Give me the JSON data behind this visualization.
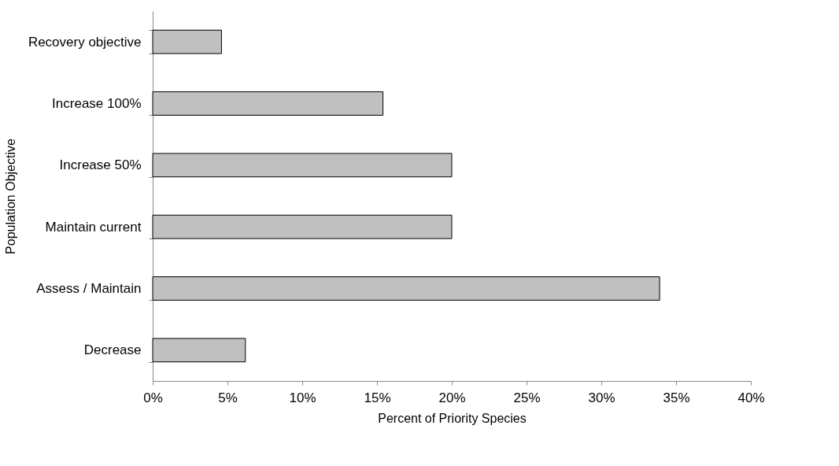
{
  "chart_data": {
    "type": "bar",
    "orientation": "horizontal",
    "xlabel": "Percent of Priority Species",
    "ylabel": "Population Objective",
    "categories": [
      "Recovery objective",
      "Increase 100%",
      "Increase 50%",
      "Maintain current",
      "Assess / Maintain",
      "Decrease"
    ],
    "values": [
      4.6,
      15.4,
      20.0,
      20.0,
      33.9,
      6.2
    ],
    "color": "#c0c0c0",
    "xlim": [
      0,
      40
    ],
    "xticks": [
      {
        "value": 0,
        "label": "0%"
      },
      {
        "value": 5,
        "label": "5%"
      },
      {
        "value": 10,
        "label": "10%"
      },
      {
        "value": 15,
        "label": "15%"
      },
      {
        "value": 20,
        "label": "20%"
      },
      {
        "value": 25,
        "label": "25%"
      },
      {
        "value": 30,
        "label": "30%"
      },
      {
        "value": 35,
        "label": "35%"
      },
      {
        "value": 40,
        "label": "40%"
      }
    ],
    "grid": false
  }
}
